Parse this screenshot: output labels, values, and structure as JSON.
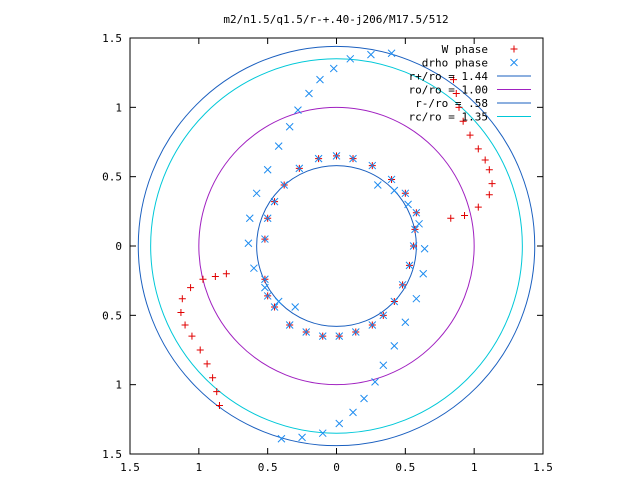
{
  "chart_data": {
    "type": "scatter",
    "title": "m2/n1.5/q1.5/r-+.40-j206/M17.5/512",
    "xlabel": "",
    "ylabel": "",
    "xlim": [
      -1.5,
      1.5
    ],
    "ylim": [
      -1.5,
      1.5
    ],
    "x_ticks": [
      -1.5,
      -1,
      -0.5,
      0,
      0.5,
      1,
      1.5
    ],
    "x_tick_labels": [
      "1.5",
      "1",
      "0.5",
      "0",
      "0.5",
      "1",
      "1.5"
    ],
    "y_ticks": [
      1.5,
      1,
      0.5,
      0,
      -0.5,
      -1,
      -1.5
    ],
    "y_tick_labels": [
      "1.5",
      "1",
      "0.5",
      "0",
      "0.5",
      "1",
      "1.5"
    ],
    "grid": false,
    "legend_position": "top-right",
    "circles": [
      {
        "name": "r+/ro = 1.44",
        "radius": 1.44,
        "color": "#1a5fbf"
      },
      {
        "name": "ro/ro = 1.00",
        "radius": 1.0,
        "color": "#a020c0"
      },
      {
        "name": "r-/ro = .58",
        "radius": 0.58,
        "color": "#1a5fbf"
      },
      {
        "name": "rc/ro = 1.35",
        "radius": 1.35,
        "color": "#00c8d8"
      }
    ],
    "series": [
      {
        "name": "W phase",
        "marker": "+",
        "color": "#e00000",
        "points": [
          [
            0.85,
            1.2
          ],
          [
            0.87,
            1.1
          ],
          [
            0.89,
            1.0
          ],
          [
            0.92,
            0.9
          ],
          [
            0.97,
            0.8
          ],
          [
            1.03,
            0.7
          ],
          [
            1.08,
            0.62
          ],
          [
            1.11,
            0.55
          ],
          [
            1.13,
            0.45
          ],
          [
            1.11,
            0.37
          ],
          [
            1.03,
            0.28
          ],
          [
            0.93,
            0.22
          ],
          [
            0.83,
            0.2
          ],
          [
            -0.85,
            -1.15
          ],
          [
            -0.87,
            -1.05
          ],
          [
            -0.9,
            -0.95
          ],
          [
            -0.94,
            -0.85
          ],
          [
            -0.99,
            -0.75
          ],
          [
            -1.05,
            -0.65
          ],
          [
            -1.1,
            -0.57
          ],
          [
            -1.13,
            -0.48
          ],
          [
            -1.12,
            -0.38
          ],
          [
            -1.06,
            -0.3
          ],
          [
            -0.97,
            -0.24
          ],
          [
            -0.88,
            -0.22
          ],
          [
            -0.8,
            -0.2
          ],
          [
            0.5,
            0.38
          ],
          [
            0.4,
            0.48
          ],
          [
            0.26,
            0.58
          ],
          [
            0.12,
            0.63
          ],
          [
            0.0,
            0.65
          ],
          [
            -0.13,
            0.63
          ],
          [
            -0.27,
            0.56
          ],
          [
            -0.38,
            0.44
          ],
          [
            -0.45,
            0.32
          ],
          [
            -0.5,
            0.2
          ],
          [
            -0.52,
            0.05
          ],
          [
            -0.52,
            -0.24
          ],
          [
            -0.5,
            -0.36
          ],
          [
            -0.45,
            -0.44
          ],
          [
            -0.34,
            -0.57
          ],
          [
            -0.22,
            -0.62
          ],
          [
            -0.1,
            -0.65
          ],
          [
            0.02,
            -0.65
          ],
          [
            0.14,
            -0.62
          ],
          [
            0.26,
            -0.57
          ],
          [
            0.34,
            -0.5
          ],
          [
            0.42,
            -0.4
          ],
          [
            0.48,
            -0.28
          ],
          [
            0.53,
            -0.14
          ],
          [
            0.56,
            0.0
          ],
          [
            0.57,
            0.12
          ],
          [
            0.58,
            0.24
          ]
        ]
      },
      {
        "name": "drho phase",
        "marker": "x",
        "color": "#1e8cf0",
        "points": [
          [
            0.4,
            1.39
          ],
          [
            0.25,
            1.38
          ],
          [
            0.1,
            1.35
          ],
          [
            -0.02,
            1.28
          ],
          [
            -0.12,
            1.2
          ],
          [
            -0.2,
            1.1
          ],
          [
            -0.28,
            0.98
          ],
          [
            -0.34,
            0.86
          ],
          [
            -0.42,
            0.72
          ],
          [
            -0.5,
            0.55
          ],
          [
            -0.58,
            0.38
          ],
          [
            -0.63,
            0.2
          ],
          [
            -0.64,
            0.02
          ],
          [
            -0.6,
            -0.16
          ],
          [
            -0.52,
            -0.3
          ],
          [
            -0.42,
            -0.4
          ],
          [
            -0.3,
            -0.44
          ],
          [
            -0.4,
            -1.39
          ],
          [
            -0.25,
            -1.38
          ],
          [
            -0.1,
            -1.35
          ],
          [
            0.02,
            -1.28
          ],
          [
            0.12,
            -1.2
          ],
          [
            0.2,
            -1.1
          ],
          [
            0.28,
            -0.98
          ],
          [
            0.34,
            -0.86
          ],
          [
            0.42,
            -0.72
          ],
          [
            0.5,
            -0.55
          ],
          [
            0.58,
            -0.38
          ],
          [
            0.63,
            -0.2
          ],
          [
            0.64,
            -0.02
          ],
          [
            0.6,
            0.16
          ],
          [
            0.52,
            0.3
          ],
          [
            0.42,
            0.4
          ],
          [
            0.3,
            0.44
          ],
          [
            0.5,
            0.38
          ],
          [
            0.4,
            0.48
          ],
          [
            0.26,
            0.58
          ],
          [
            0.12,
            0.63
          ],
          [
            0.0,
            0.65
          ],
          [
            -0.13,
            0.63
          ],
          [
            -0.27,
            0.56
          ],
          [
            -0.38,
            0.44
          ],
          [
            -0.45,
            0.32
          ],
          [
            -0.5,
            0.2
          ],
          [
            -0.52,
            0.05
          ],
          [
            -0.52,
            -0.24
          ],
          [
            -0.5,
            -0.36
          ],
          [
            -0.45,
            -0.44
          ],
          [
            -0.34,
            -0.57
          ],
          [
            -0.22,
            -0.62
          ],
          [
            -0.1,
            -0.65
          ],
          [
            0.02,
            -0.65
          ],
          [
            0.14,
            -0.62
          ],
          [
            0.26,
            -0.57
          ],
          [
            0.34,
            -0.5
          ],
          [
            0.42,
            -0.4
          ],
          [
            0.48,
            -0.28
          ],
          [
            0.53,
            -0.14
          ],
          [
            0.56,
            0.0
          ],
          [
            0.57,
            0.12
          ],
          [
            0.58,
            0.24
          ]
        ]
      }
    ]
  }
}
